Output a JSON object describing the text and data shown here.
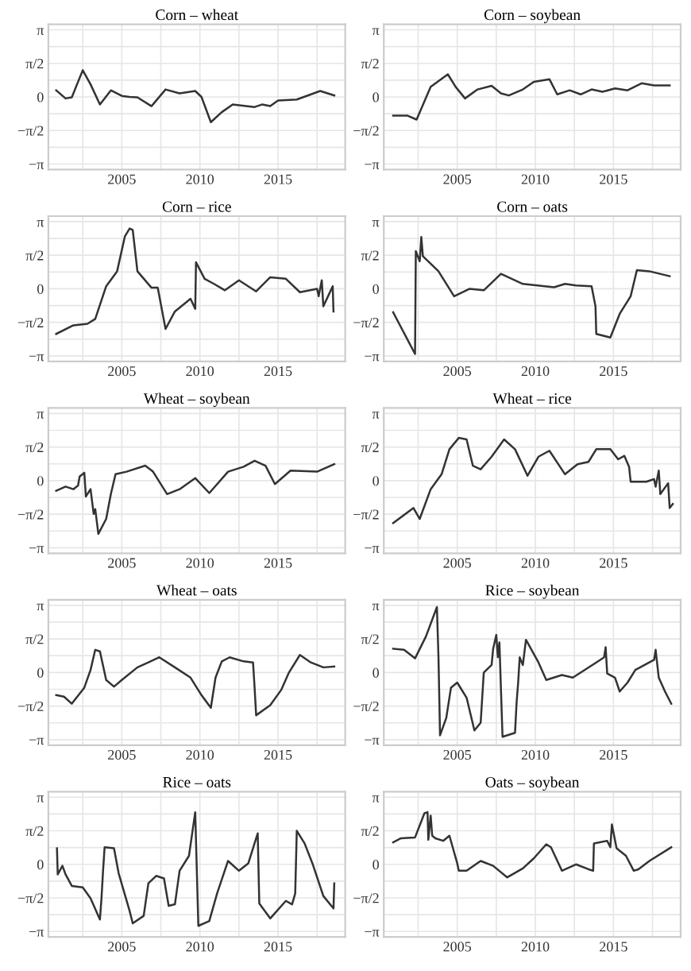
{
  "chart_data": [
    {
      "type": "line",
      "title": "Corn – wheat",
      "color": "#333333",
      "grid": true,
      "xlim": [
        2000.3,
        2019.3
      ],
      "ylim": [
        -3.4,
        3.4
      ],
      "xticks": [
        {
          "value": 2002.5,
          "label": null
        },
        2005,
        {
          "value": 2007.5,
          "label": null
        },
        2010,
        {
          "value": 2012.5,
          "label": null
        },
        2015,
        {
          "value": 2017.5,
          "label": null
        }
      ],
      "yticks": [
        {
          "value": -3.1416,
          "label": "−π"
        },
        {
          "value": -2.3562,
          "label": null
        },
        {
          "value": -1.5708,
          "label": "−π/2"
        },
        {
          "value": -0.7854,
          "label": null
        },
        0,
        {
          "value": 0.7854,
          "label": null
        },
        {
          "value": 1.5708,
          "label": "π/2"
        },
        {
          "value": 2.3562,
          "label": null
        },
        {
          "value": 3.1416,
          "label": "π"
        }
      ],
      "x": [
        2000.8,
        2001.4,
        2001.8,
        2002.5,
        2003.0,
        2003.6,
        2004.3,
        2005.0,
        2005.5,
        2006.0,
        2006.9,
        2007.8,
        2008.7,
        2009.7,
        2010.1,
        2010.7,
        2011.4,
        2012.1,
        2013.5,
        2014.0,
        2014.5,
        2015.0,
        2016.2,
        2017.7,
        2018.6
      ],
      "values": [
        0.31,
        -0.07,
        -0.02,
        1.25,
        0.59,
        -0.35,
        0.31,
        0.05,
        0,
        -0.02,
        -0.43,
        0.35,
        0.17,
        0.28,
        0,
        -1.18,
        -0.71,
        -0.35,
        -0.47,
        -0.35,
        -0.43,
        -0.17,
        -0.12,
        0.28,
        0.07
      ]
    },
    {
      "type": "line",
      "title": "Corn – soybean",
      "color": "#333333",
      "grid": true,
      "xlim": [
        2000.3,
        2019.3
      ],
      "ylim": [
        -3.4,
        3.4
      ],
      "xticks": [
        {
          "value": 2002.5,
          "label": null
        },
        2005,
        {
          "value": 2007.5,
          "label": null
        },
        2010,
        {
          "value": 2012.5,
          "label": null
        },
        2015,
        {
          "value": 2017.5,
          "label": null
        }
      ],
      "yticks": [
        {
          "value": -3.1416,
          "label": "−π"
        },
        {
          "value": -2.3562,
          "label": null
        },
        {
          "value": -1.5708,
          "label": "−π/2"
        },
        {
          "value": -0.7854,
          "label": null
        },
        0,
        {
          "value": 0.7854,
          "label": null
        },
        {
          "value": 1.5708,
          "label": "π/2"
        },
        {
          "value": 2.3562,
          "label": null
        },
        {
          "value": 3.1416,
          "label": "π"
        }
      ],
      "x": [
        2000.9,
        2001.8,
        2002.4,
        2003.3,
        2004.4,
        2004.9,
        2005.5,
        2006.3,
        2007.2,
        2007.8,
        2008.3,
        2009.2,
        2009.9,
        2010.9,
        2011.4,
        2012.2,
        2012.9,
        2013.6,
        2014.3,
        2015.1,
        2015.9,
        2016.8,
        2017.6,
        2018.6
      ],
      "values": [
        -0.87,
        -0.87,
        -1.06,
        0.47,
        1.06,
        0.47,
        -0.07,
        0.35,
        0.52,
        0.17,
        0.07,
        0.35,
        0.71,
        0.83,
        0.12,
        0.31,
        0.12,
        0.35,
        0.24,
        0.4,
        0.31,
        0.64,
        0.54,
        0.54
      ]
    },
    {
      "type": "line",
      "title": "Corn – rice",
      "color": "#333333",
      "grid": true,
      "xlim": [
        2000.3,
        2019.3
      ],
      "ylim": [
        -3.4,
        3.4
      ],
      "xticks": [
        {
          "value": 2002.5,
          "label": null
        },
        2005,
        {
          "value": 2007.5,
          "label": null
        },
        2010,
        {
          "value": 2012.5,
          "label": null
        },
        2015,
        {
          "value": 2017.5,
          "label": null
        }
      ],
      "yticks": [
        {
          "value": -3.1416,
          "label": "−π"
        },
        {
          "value": -2.3562,
          "label": null
        },
        {
          "value": -1.5708,
          "label": "−π/2"
        },
        {
          "value": -0.7854,
          "label": null
        },
        0,
        {
          "value": 0.7854,
          "label": null
        },
        {
          "value": 1.5708,
          "label": "π/2"
        },
        {
          "value": 2.3562,
          "label": null
        },
        {
          "value": 3.1416,
          "label": "π"
        }
      ],
      "x": [
        2000.8,
        2001.9,
        2002.8,
        2003.3,
        2004.0,
        2004.7,
        2005.2,
        2005.5,
        2005.7,
        2006.0,
        2006.9,
        2007.3,
        2007.8,
        2008.4,
        2009.4,
        2009.7,
        2009.75,
        2010.3,
        2010.9,
        2011.6,
        2012.5,
        2013.6,
        2014.5,
        2015.5,
        2016.4,
        2017.5,
        2017.6,
        2017.8,
        2017.9,
        2018.2,
        2018.5,
        2018.55
      ],
      "values": [
        -2.11,
        -1.71,
        -1.64,
        -1.41,
        0.12,
        0.82,
        2.46,
        2.82,
        2.75,
        0.82,
        0.05,
        0.05,
        -1.88,
        -1.06,
        -0.47,
        -0.94,
        1.24,
        0.47,
        0.23,
        -0.07,
        0.4,
        -0.12,
        0.54,
        0.47,
        -0.16,
        0,
        -0.35,
        0.4,
        -0.82,
        -0.35,
        0.12,
        -1.06
      ]
    },
    {
      "type": "line",
      "title": "Corn – oats",
      "color": "#333333",
      "grid": true,
      "xlim": [
        2000.3,
        2019.3
      ],
      "ylim": [
        -3.4,
        3.4
      ],
      "xticks": [
        {
          "value": 2002.5,
          "label": null
        },
        2005,
        {
          "value": 2007.5,
          "label": null
        },
        2010,
        {
          "value": 2012.5,
          "label": null
        },
        2015,
        {
          "value": 2017.5,
          "label": null
        }
      ],
      "yticks": [
        {
          "value": -3.1416,
          "label": "−π"
        },
        {
          "value": -2.3562,
          "label": null
        },
        {
          "value": -1.5708,
          "label": "−π/2"
        },
        {
          "value": -0.7854,
          "label": null
        },
        0,
        {
          "value": 0.7854,
          "label": null
        },
        {
          "value": 1.5708,
          "label": "π/2"
        },
        {
          "value": 2.3562,
          "label": null
        },
        {
          "value": 3.1416,
          "label": "π"
        }
      ],
      "x": [
        2000.9,
        2002.3,
        2002.35,
        2002.6,
        2002.7,
        2002.8,
        2003.8,
        2004.8,
        2005.8,
        2006.7,
        2007.8,
        2009.2,
        2011.2,
        2011.9,
        2012.6,
        2013.6,
        2013.85,
        2013.9,
        2014.8,
        2015.4,
        2016.1,
        2016.5,
        2017.3,
        2018.6
      ],
      "values": [
        -1.1,
        -3.05,
        1.76,
        1.29,
        2.42,
        1.53,
        0.82,
        -0.35,
        0,
        -0.07,
        0.7,
        0.23,
        0.07,
        0.23,
        0.16,
        0.12,
        -0.82,
        -2.11,
        -2.28,
        -1.17,
        -0.35,
        0.87,
        0.82,
        0.59
      ]
    },
    {
      "type": "line",
      "title": "Wheat – soybean",
      "color": "#333333",
      "grid": true,
      "xlim": [
        2000.3,
        2019.3
      ],
      "ylim": [
        -3.4,
        3.4
      ],
      "xticks": [
        {
          "value": 2002.5,
          "label": null
        },
        2005,
        {
          "value": 2007.5,
          "label": null
        },
        2010,
        {
          "value": 2012.5,
          "label": null
        },
        2015,
        {
          "value": 2017.5,
          "label": null
        }
      ],
      "yticks": [
        {
          "value": -3.1416,
          "label": "−π"
        },
        {
          "value": -2.3562,
          "label": null
        },
        {
          "value": -1.5708,
          "label": "−π/2"
        },
        {
          "value": -0.7854,
          "label": null
        },
        0,
        {
          "value": 0.7854,
          "label": null
        },
        {
          "value": 1.5708,
          "label": "π/2"
        },
        {
          "value": 2.3562,
          "label": null
        },
        {
          "value": 3.1416,
          "label": "π"
        }
      ],
      "x": [
        2000.8,
        2001.4,
        2001.9,
        2002.2,
        2002.3,
        2002.6,
        2002.7,
        2003.0,
        2003.2,
        2003.3,
        2003.5,
        2004.0,
        2004.3,
        2004.6,
        2005.3,
        2006.5,
        2007.0,
        2007.9,
        2008.7,
        2009.7,
        2010.6,
        2011.8,
        2012.8,
        2013.5,
        2014.2,
        2014.8,
        2015.8,
        2017.5,
        2018.6
      ],
      "values": [
        -0.47,
        -0.28,
        -0.4,
        -0.23,
        0.19,
        0.37,
        -0.74,
        -0.4,
        -1.56,
        -1.33,
        -2.49,
        -1.79,
        -0.63,
        0.3,
        0.42,
        0.7,
        0.42,
        -0.63,
        -0.4,
        0.12,
        -0.58,
        0.42,
        0.65,
        0.93,
        0.7,
        -0.16,
        0.47,
        0.42,
        0.77
      ]
    },
    {
      "type": "line",
      "title": "Wheat – rice",
      "color": "#333333",
      "grid": true,
      "xlim": [
        2000.3,
        2019.3
      ],
      "ylim": [
        -3.4,
        3.4
      ],
      "xticks": [
        {
          "value": 2002.5,
          "label": null
        },
        2005,
        {
          "value": 2007.5,
          "label": null
        },
        2010,
        {
          "value": 2012.5,
          "label": null
        },
        2015,
        {
          "value": 2017.5,
          "label": null
        }
      ],
      "yticks": [
        {
          "value": -3.1416,
          "label": "−π"
        },
        {
          "value": -2.3562,
          "label": null
        },
        {
          "value": -1.5708,
          "label": "−π/2"
        },
        {
          "value": -0.7854,
          "label": null
        },
        0,
        {
          "value": 0.7854,
          "label": null
        },
        {
          "value": 1.5708,
          "label": "π/2"
        },
        {
          "value": 2.3562,
          "label": null
        },
        {
          "value": 3.1416,
          "label": "π"
        }
      ],
      "x": [
        2000.9,
        2002.2,
        2002.6,
        2003.3,
        2004.0,
        2004.5,
        2005.1,
        2005.6,
        2006.0,
        2006.5,
        2007.2,
        2008.0,
        2008.7,
        2009.5,
        2010.2,
        2010.9,
        2011.9,
        2012.7,
        2013.4,
        2013.9,
        2014.8,
        2015.3,
        2015.7,
        2016.0,
        2016.1,
        2017.1,
        2017.6,
        2017.7,
        2017.9,
        2018.0,
        2018.5,
        2018.6,
        2018.8
      ],
      "values": [
        -1.98,
        -1.28,
        -1.79,
        -0.4,
        0.3,
        1.47,
        2.0,
        1.93,
        0.7,
        0.53,
        1.12,
        1.93,
        1.47,
        0.23,
        1.12,
        1.4,
        0.3,
        0.77,
        0.88,
        1.47,
        1.47,
        1.0,
        1.16,
        0.65,
        -0.05,
        -0.05,
        0.07,
        -0.28,
        0.47,
        -0.63,
        -0.12,
        -1.28,
        -1.09
      ]
    },
    {
      "type": "line",
      "title": "Wheat – oats",
      "color": "#333333",
      "grid": true,
      "xlim": [
        2000.3,
        2019.3
      ],
      "ylim": [
        -3.4,
        3.4
      ],
      "xticks": [
        {
          "value": 2002.5,
          "label": null
        },
        2005,
        {
          "value": 2007.5,
          "label": null
        },
        2010,
        {
          "value": 2012.5,
          "label": null
        },
        2015,
        {
          "value": 2017.5,
          "label": null
        }
      ],
      "yticks": [
        {
          "value": -3.1416,
          "label": "−π"
        },
        {
          "value": -2.3562,
          "label": null
        },
        {
          "value": -1.5708,
          "label": "−π/2"
        },
        {
          "value": -0.7854,
          "label": null
        },
        0,
        {
          "value": 0.7854,
          "label": null
        },
        {
          "value": 1.5708,
          "label": "π/2"
        },
        {
          "value": 2.3562,
          "label": null
        },
        {
          "value": 3.1416,
          "label": "π"
        }
      ],
      "x": [
        2000.8,
        2001.3,
        2001.8,
        2002.6,
        2003.0,
        2003.3,
        2003.6,
        2004.0,
        2004.5,
        2005.0,
        2006.0,
        2006.7,
        2007.4,
        2008.4,
        2009.4,
        2010.1,
        2010.7,
        2011.0,
        2011.4,
        2011.9,
        2012.8,
        2013.4,
        2013.5,
        2013.6,
        2014.5,
        2015.2,
        2015.7,
        2016.4,
        2017.1,
        2017.9,
        2018.6
      ],
      "values": [
        -1.06,
        -1.13,
        -1.46,
        -0.71,
        0.12,
        1.06,
        0.99,
        -0.35,
        -0.66,
        -0.35,
        0.24,
        0.47,
        0.71,
        0.24,
        -0.24,
        -1.06,
        -1.65,
        -0.24,
        0.52,
        0.71,
        0.52,
        0.47,
        -0.71,
        -2.0,
        -1.53,
        -0.82,
        0,
        0.82,
        0.47,
        0.24,
        0.28
      ]
    },
    {
      "type": "line",
      "title": "Rice – soybean",
      "color": "#333333",
      "grid": true,
      "xlim": [
        2000.3,
        2019.3
      ],
      "ylim": [
        -3.4,
        3.4
      ],
      "xticks": [
        {
          "value": 2002.5,
          "label": null
        },
        2005,
        {
          "value": 2007.5,
          "label": null
        },
        2010,
        {
          "value": 2012.5,
          "label": null
        },
        2015,
        {
          "value": 2017.5,
          "label": null
        }
      ],
      "yticks": [
        {
          "value": -3.1416,
          "label": "−π"
        },
        {
          "value": -2.3562,
          "label": null
        },
        {
          "value": -1.5708,
          "label": "−π/2"
        },
        {
          "value": -0.7854,
          "label": null
        },
        0,
        {
          "value": 0.7854,
          "label": null
        },
        {
          "value": 1.5708,
          "label": "π/2"
        },
        {
          "value": 2.3562,
          "label": null
        },
        {
          "value": 3.1416,
          "label": "π"
        }
      ],
      "x": [
        2000.9,
        2001.6,
        2002.3,
        2003.0,
        2003.7,
        2003.8,
        2003.9,
        2004.3,
        2004.6,
        2005.0,
        2005.6,
        2006.1,
        2006.5,
        2006.7,
        2007.2,
        2007.3,
        2007.5,
        2007.6,
        2007.7,
        2007.8,
        2007.9,
        2008.7,
        2008.8,
        2008.9,
        2009.0,
        2009.2,
        2009.4,
        2010.2,
        2010.7,
        2011.7,
        2012.4,
        2013.9,
        2014.4,
        2014.5,
        2014.6,
        2015.1,
        2015.4,
        2015.9,
        2016.4,
        2017.6,
        2017.7,
        2017.9,
        2018.3,
        2018.7
      ],
      "values": [
        1.11,
        1.06,
        0.66,
        1.69,
        3.06,
        0.71,
        -2.94,
        -2.12,
        -0.71,
        -0.47,
        -1.18,
        -2.71,
        -2.35,
        0,
        0.35,
        1.11,
        1.76,
        0.71,
        1.41,
        -0.82,
        -3.01,
        -2.82,
        -1.41,
        -0.47,
        0.71,
        0.35,
        1.53,
        0.47,
        -0.35,
        -0.12,
        -0.24,
        0.47,
        0.71,
        1.18,
        -0.05,
        -0.24,
        -0.89,
        -0.47,
        0.12,
        0.59,
        1.06,
        -0.24,
        -0.89,
        -1.46
      ]
    },
    {
      "type": "line",
      "title": "Rice – oats",
      "color": "#333333",
      "grid": true,
      "xlim": [
        2000.3,
        2019.3
      ],
      "ylim": [
        -3.4,
        3.4
      ],
      "xticks": [
        {
          "value": 2002.5,
          "label": null
        },
        2005,
        {
          "value": 2007.5,
          "label": null
        },
        2010,
        {
          "value": 2012.5,
          "label": null
        },
        2015,
        {
          "value": 2017.5,
          "label": null
        }
      ],
      "yticks": [
        {
          "value": -3.1416,
          "label": "−π"
        },
        {
          "value": -2.3562,
          "label": null
        },
        {
          "value": -1.5708,
          "label": "−π/2"
        },
        {
          "value": -0.7854,
          "label": null
        },
        0,
        {
          "value": 0.7854,
          "label": null
        },
        {
          "value": 1.5708,
          "label": "π/2"
        },
        {
          "value": 2.3562,
          "label": null
        },
        {
          "value": 3.1416,
          "label": "π"
        }
      ],
      "x": [
        2000.85,
        2000.9,
        2001.2,
        2001.4,
        2001.8,
        2002.5,
        2003.0,
        2003.6,
        2003.7,
        2003.8,
        2003.9,
        2004.5,
        2004.8,
        2005.5,
        2005.7,
        2006.4,
        2006.7,
        2007.2,
        2007.7,
        2008.0,
        2008.4,
        2008.7,
        2009.3,
        2009.7,
        2009.9,
        2010.6,
        2011.1,
        2011.8,
        2012.5,
        2013.1,
        2013.6,
        2013.7,
        2013.8,
        2014.5,
        2015.5,
        2015.9,
        2016.1,
        2016.2,
        2016.7,
        2017.2,
        2017.9,
        2018.55,
        2018.6
      ],
      "values": [
        0.75,
        -0.47,
        -0.07,
        -0.47,
        -1.01,
        -1.08,
        -1.59,
        -2.58,
        -1.59,
        -0.3,
        0.8,
        0.75,
        -0.42,
        -2.18,
        -2.76,
        -2.41,
        -0.89,
        -0.54,
        -0.66,
        -1.94,
        -1.87,
        -0.3,
        0.4,
        2.44,
        -2.88,
        -2.65,
        -1.36,
        0.16,
        -0.3,
        0.05,
        1.22,
        1.45,
        -1.83,
        -2.53,
        -1.71,
        -1.87,
        -1.36,
        1.57,
        0.98,
        0.05,
        -1.48,
        -2.06,
        -0.89
      ]
    },
    {
      "type": "line",
      "title": "Oats – soybean",
      "color": "#333333",
      "grid": true,
      "xlim": [
        2000.3,
        2019.3
      ],
      "ylim": [
        -3.4,
        3.4
      ],
      "xticks": [
        {
          "value": 2002.5,
          "label": null
        },
        2005,
        {
          "value": 2007.5,
          "label": null
        },
        2010,
        {
          "value": 2012.5,
          "label": null
        },
        2015,
        {
          "value": 2017.5,
          "label": null
        }
      ],
      "yticks": [
        {
          "value": -3.1416,
          "label": "−π"
        },
        {
          "value": -2.3562,
          "label": null
        },
        {
          "value": -1.5708,
          "label": "−π/2"
        },
        {
          "value": -0.7854,
          "label": null
        },
        0,
        {
          "value": 0.7854,
          "label": null
        },
        {
          "value": 1.5708,
          "label": "π/2"
        },
        {
          "value": 2.3562,
          "label": null
        },
        {
          "value": 3.1416,
          "label": "π"
        }
      ],
      "x": [
        2000.9,
        2001.4,
        2002.3,
        2002.9,
        2003.1,
        2003.15,
        2003.3,
        2003.4,
        2003.6,
        2004.1,
        2004.5,
        2005.0,
        2005.1,
        2005.6,
        2006.5,
        2007.3,
        2008.2,
        2009.2,
        2009.9,
        2010.7,
        2011.0,
        2011.7,
        2012.6,
        2013.4,
        2013.7,
        2013.75,
        2014.6,
        2014.8,
        2014.9,
        2015.2,
        2015.8,
        2016.3,
        2016.6,
        2017.3,
        2018.7
      ],
      "values": [
        1.03,
        1.22,
        1.26,
        2.39,
        2.44,
        1.15,
        2.28,
        1.34,
        1.22,
        1.1,
        1.34,
        0.05,
        -0.3,
        -0.3,
        0.16,
        -0.07,
        -0.61,
        -0.19,
        0.28,
        0.94,
        0.8,
        -0.3,
        0,
        -0.23,
        -0.3,
        0.98,
        1.1,
        0.8,
        1.87,
        0.75,
        0.4,
        -0.3,
        -0.23,
        0.16,
        0.8
      ]
    }
  ]
}
